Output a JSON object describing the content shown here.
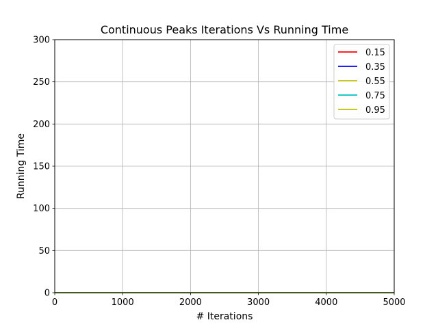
{
  "chart_data": {
    "type": "line",
    "title": "Continuous Peaks Iterations Vs Running Time",
    "xlabel": "# Iterations",
    "ylabel": "Running Time",
    "xlim": [
      0,
      5000
    ],
    "ylim": [
      0,
      300
    ],
    "xticks": [
      0,
      1000,
      2000,
      3000,
      4000,
      5000
    ],
    "yticks": [
      0,
      50,
      100,
      150,
      200,
      250,
      300
    ],
    "grid": true,
    "legend_position": "top-right",
    "x": [
      0,
      500,
      1000,
      1500,
      2000,
      2500,
      3000,
      3500,
      4000,
      4500,
      5000
    ],
    "series": [
      {
        "name": "0.15",
        "color": "#ff0000",
        "values": [
          0,
          0,
          0,
          0,
          0,
          0,
          0,
          0,
          0,
          0,
          0
        ]
      },
      {
        "name": "0.35",
        "color": "#0000ff",
        "values": [
          0,
          0,
          0,
          0,
          0,
          0,
          0,
          0,
          0,
          0,
          0
        ]
      },
      {
        "name": "0.55",
        "color": "#bfbf00",
        "values": [
          0,
          0,
          0,
          0,
          0,
          0,
          0,
          0,
          0,
          0,
          0
        ]
      },
      {
        "name": "0.75",
        "color": "#00bfbf",
        "values": [
          0,
          0,
          0,
          0,
          0,
          0,
          0,
          0,
          0,
          0,
          0
        ]
      },
      {
        "name": "0.95",
        "color": "#bfbf00",
        "values": [
          0,
          0,
          0,
          0,
          0,
          0,
          0,
          0,
          0,
          0,
          0
        ]
      }
    ]
  }
}
